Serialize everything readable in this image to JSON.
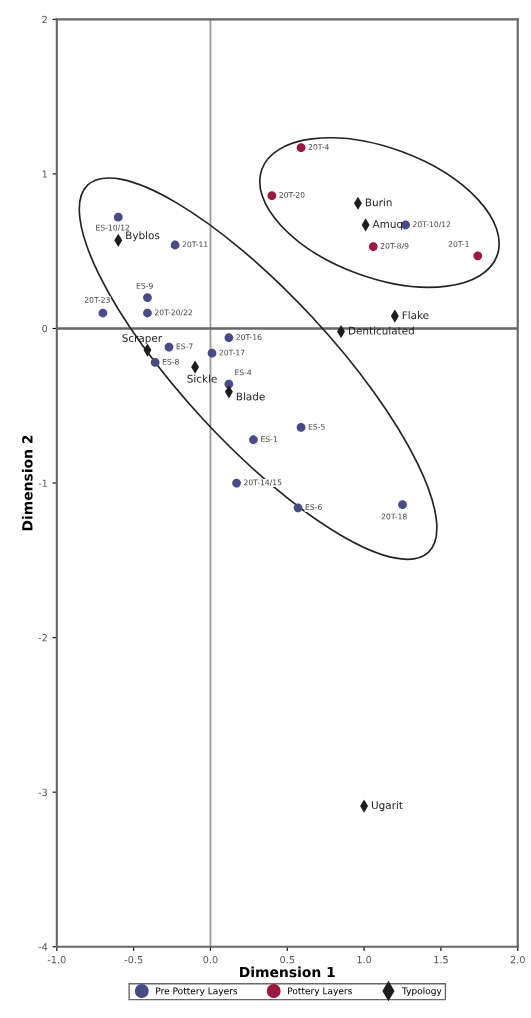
{
  "chart_data": {
    "type": "scatter",
    "xlabel": "Dimension 1",
    "ylabel": "Dimension 2",
    "xlim": [
      -1.0,
      2.0
    ],
    "ylim": [
      -4,
      2
    ],
    "xticks": [
      {
        "value": -1.0,
        "label": "-1.0"
      },
      {
        "value": -0.5,
        "label": "-0.5"
      },
      {
        "value": 0.0,
        "label": "0.0"
      },
      {
        "value": 0.5,
        "label": "0.5"
      },
      {
        "value": 1.0,
        "label": "1.0"
      },
      {
        "value": 1.5,
        "label": "1.5"
      },
      {
        "value": 2.0,
        "label": "2.0"
      }
    ],
    "yticks": [
      -4,
      -3,
      -2,
      -1,
      0,
      1,
      2
    ],
    "grid": false,
    "legend": "bottom",
    "ref_lines": [
      {
        "axis": "x",
        "value": 0,
        "color": "#9a9a9a"
      },
      {
        "axis": "y",
        "value": 0,
        "color": "#666666"
      }
    ],
    "series": [
      {
        "name": "Pre Pottery Layers",
        "color": "#474c86",
        "marker": "circle",
        "x": [
          -0.6,
          -0.23,
          -0.41,
          -0.7,
          -0.41,
          0.12,
          -0.27,
          0.01,
          -0.36,
          0.12,
          0.59,
          0.28,
          0.17,
          0.57,
          1.25,
          1.27
        ],
        "values": [
          0.72,
          0.54,
          0.2,
          0.1,
          0.1,
          -0.06,
          -0.12,
          -0.16,
          -0.22,
          -0.36,
          -0.64,
          -0.72,
          -1.0,
          -1.16,
          -1.14,
          0.67
        ]
      },
      {
        "name": "Pottery Layers",
        "color": "#9c1a40",
        "marker": "circle",
        "x": [
          0.59,
          0.4,
          1.06,
          1.74
        ],
        "values": [
          1.17,
          0.86,
          0.53,
          0.47
        ]
      },
      {
        "name": "Typology",
        "color": "#1e1e1e",
        "marker": "diamond",
        "x": [
          -0.6,
          0.96,
          1.01,
          1.2,
          0.85,
          -0.41,
          -0.1,
          0.12,
          1.0
        ],
        "values": [
          0.57,
          0.81,
          0.67,
          0.08,
          -0.02,
          -0.14,
          -0.25,
          -0.41,
          -3.09
        ]
      }
    ],
    "annotations": [
      {
        "text": "ES-10/12",
        "x": -0.6,
        "y": 0.72
      },
      {
        "text": "20T-11",
        "x": -0.23,
        "y": 0.54
      },
      {
        "text": "ES-9",
        "x": -0.41,
        "y": 0.2
      },
      {
        "text": "20T-23",
        "x": -0.7,
        "y": 0.1
      },
      {
        "text": "20T-20/22",
        "x": -0.41,
        "y": 0.1
      },
      {
        "text": "20T-16",
        "x": 0.12,
        "y": -0.06
      },
      {
        "text": "ES-7",
        "x": -0.27,
        "y": -0.12
      },
      {
        "text": "20T-17",
        "x": 0.01,
        "y": -0.16
      },
      {
        "text": "ES-8",
        "x": -0.36,
        "y": -0.22
      },
      {
        "text": "ES-4",
        "x": 0.12,
        "y": -0.36
      },
      {
        "text": "ES-5",
        "x": 0.59,
        "y": -0.64
      },
      {
        "text": "ES-1",
        "x": 0.28,
        "y": -0.72
      },
      {
        "text": "20T-14/15",
        "x": 0.17,
        "y": -1.0
      },
      {
        "text": "ES-6",
        "x": 0.57,
        "y": -1.16
      },
      {
        "text": "20T-18",
        "x": 1.25,
        "y": -1.14
      },
      {
        "text": "20T-10/12",
        "x": 1.27,
        "y": 0.67
      },
      {
        "text": "20T-4",
        "x": 0.59,
        "y": 1.17
      },
      {
        "text": "20T-20",
        "x": 0.4,
        "y": 0.86
      },
      {
        "text": "20T-8/9",
        "x": 1.06,
        "y": 0.53
      },
      {
        "text": "20T-1",
        "x": 1.74,
        "y": 0.47
      },
      {
        "text": "Byblos",
        "x": -0.6,
        "y": 0.57
      },
      {
        "text": "Burin",
        "x": 0.96,
        "y": 0.81
      },
      {
        "text": "Amuq",
        "x": 1.01,
        "y": 0.67
      },
      {
        "text": "Flake",
        "x": 1.2,
        "y": 0.08
      },
      {
        "text": "Denticulated",
        "x": 0.85,
        "y": -0.02
      },
      {
        "text": "Scraper",
        "x": -0.41,
        "y": -0.14
      },
      {
        "text": "Sickle",
        "x": -0.1,
        "y": -0.25
      },
      {
        "text": "Blade",
        "x": 0.12,
        "y": -0.41
      },
      {
        "text": "Ugarit",
        "x": 1.0,
        "y": -3.09
      }
    ]
  }
}
